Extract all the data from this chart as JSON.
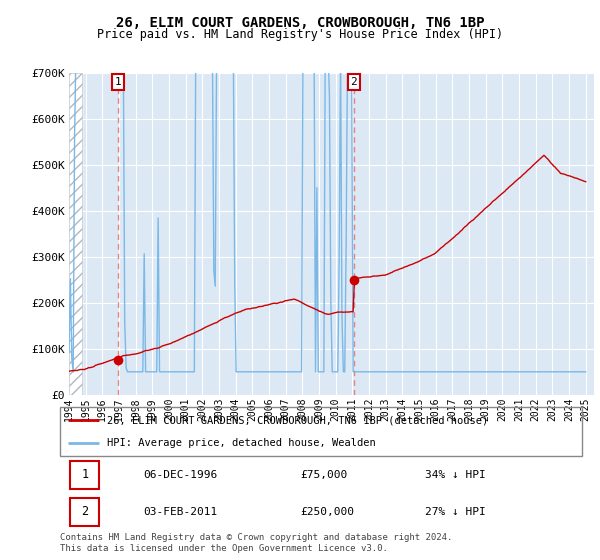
{
  "title": "26, ELIM COURT GARDENS, CROWBOROUGH, TN6 1BP",
  "subtitle": "Price paid vs. HM Land Registry's House Price Index (HPI)",
  "legend_line1": "26, ELIM COURT GARDENS, CROWBOROUGH, TN6 1BP (detached house)",
  "legend_line2": "HPI: Average price, detached house, Wealden",
  "footer": "Contains HM Land Registry data © Crown copyright and database right 2024.\nThis data is licensed under the Open Government Licence v3.0.",
  "table_rows": [
    [
      "1",
      "06-DEC-1996",
      "£75,000",
      "34% ↓ HPI"
    ],
    [
      "2",
      "03-FEB-2011",
      "£250,000",
      "27% ↓ HPI"
    ]
  ],
  "hpi_color": "#7ab8e8",
  "price_color": "#cc0000",
  "marker_color": "#cc0000",
  "vline_color": "#e88080",
  "ylim": [
    0,
    700000
  ],
  "yticks": [
    0,
    100000,
    200000,
    300000,
    400000,
    500000,
    600000,
    700000
  ],
  "ytick_labels": [
    "£0",
    "£100K",
    "£200K",
    "£300K",
    "£400K",
    "£500K",
    "£600K",
    "£700K"
  ],
  "sale1_year": 1996.92,
  "sale1_price": 75000,
  "sale2_year": 2011.08,
  "sale2_price": 250000,
  "background_color": "#ffffff",
  "plot_bg_color": "#dce9f5"
}
